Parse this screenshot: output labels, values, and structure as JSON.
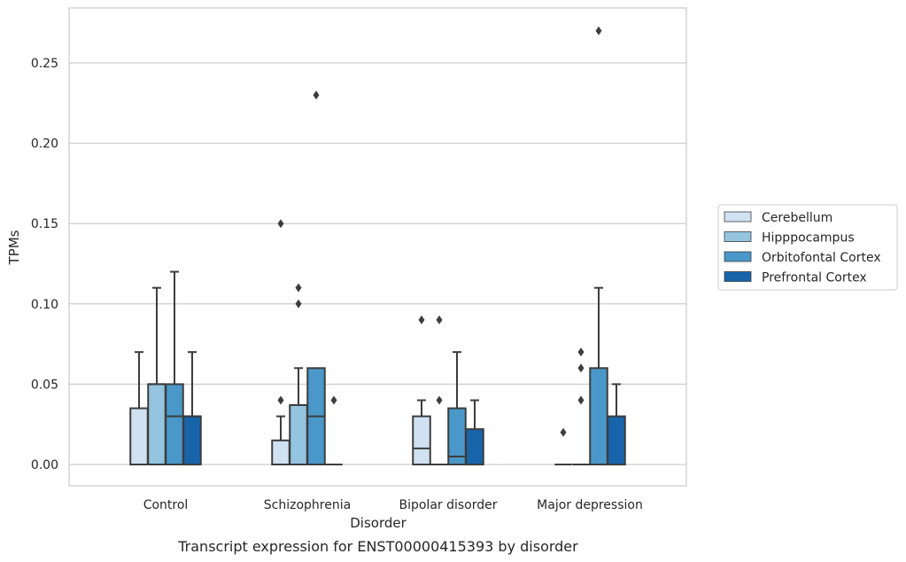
{
  "chart_data": {
    "type": "box",
    "caption": "Transcript expression for ENST00000415393 by disorder",
    "xlabel": "Disorder",
    "ylabel": "TPMs",
    "ylim": [
      -0.013,
      0.285
    ],
    "yticks": [
      "0.00",
      "0.05",
      "0.10",
      "0.15",
      "0.20",
      "0.25"
    ],
    "ytick_values": [
      0.0,
      0.05,
      0.1,
      0.15,
      0.2,
      0.25
    ],
    "grid": true,
    "legend_position": "right-center",
    "categories": [
      "Control",
      "Schizophrenia",
      "Bipolar disorder",
      "Major depression"
    ],
    "series": [
      {
        "name": "Cerebellum",
        "color": "#d0e1f2",
        "boxes": [
          {
            "q1": 0.0,
            "median": 0.0,
            "q3": 0.035,
            "whisker_low": 0.0,
            "whisker_high": 0.07,
            "outliers": []
          },
          {
            "q1": 0.0,
            "median": 0.0,
            "q3": 0.015,
            "whisker_low": 0.0,
            "whisker_high": 0.03,
            "outliers": [
              0.04,
              0.15
            ]
          },
          {
            "q1": 0.0,
            "median": 0.01,
            "q3": 0.03,
            "whisker_low": 0.0,
            "whisker_high": 0.04,
            "outliers": [
              0.09
            ]
          },
          {
            "q1": 0.0,
            "median": 0.0,
            "q3": 0.0,
            "whisker_low": 0.0,
            "whisker_high": 0.0,
            "outliers": [
              0.02
            ]
          }
        ]
      },
      {
        "name": "Hipppocampus",
        "color": "#94c4df",
        "boxes": [
          {
            "q1": 0.0,
            "median": 0.05,
            "q3": 0.05,
            "whisker_low": 0.0,
            "whisker_high": 0.11,
            "outliers": []
          },
          {
            "q1": 0.0,
            "median": 0.037,
            "q3": 0.037,
            "whisker_low": 0.0,
            "whisker_high": 0.06,
            "outliers": [
              0.1,
              0.11
            ]
          },
          {
            "q1": 0.0,
            "median": 0.0,
            "q3": 0.0,
            "whisker_low": 0.0,
            "whisker_high": 0.0,
            "outliers": [
              0.04,
              0.09
            ]
          },
          {
            "q1": 0.0,
            "median": 0.0,
            "q3": 0.0,
            "whisker_low": 0.0,
            "whisker_high": 0.0,
            "outliers": [
              0.04,
              0.06,
              0.07
            ]
          }
        ]
      },
      {
        "name": "Orbitofontal Cortex",
        "color": "#4a98c9",
        "boxes": [
          {
            "q1": 0.0,
            "median": 0.03,
            "q3": 0.05,
            "whisker_low": 0.0,
            "whisker_high": 0.12,
            "outliers": []
          },
          {
            "q1": 0.0,
            "median": 0.03,
            "q3": 0.06,
            "whisker_low": 0.0,
            "whisker_high": 0.06,
            "outliers": [
              0.23
            ]
          },
          {
            "q1": 0.0,
            "median": 0.005,
            "q3": 0.035,
            "whisker_low": 0.0,
            "whisker_high": 0.07,
            "outliers": []
          },
          {
            "q1": 0.0,
            "median": 0.0,
            "q3": 0.06,
            "whisker_low": 0.0,
            "whisker_high": 0.11,
            "outliers": [
              0.27
            ]
          }
        ]
      },
      {
        "name": "Prefrontal Cortex",
        "color": "#1764ab",
        "boxes": [
          {
            "q1": 0.0,
            "median": 0.03,
            "q3": 0.03,
            "whisker_low": 0.0,
            "whisker_high": 0.07,
            "outliers": []
          },
          {
            "q1": 0.0,
            "median": 0.0,
            "q3": 0.0,
            "whisker_low": 0.0,
            "whisker_high": 0.0,
            "outliers": [
              0.04
            ]
          },
          {
            "q1": 0.0,
            "median": 0.0,
            "q3": 0.022,
            "whisker_low": 0.0,
            "whisker_high": 0.04,
            "outliers": []
          },
          {
            "q1": 0.0,
            "median": 0.0,
            "q3": 0.03,
            "whisker_low": 0.0,
            "whisker_high": 0.05,
            "outliers": []
          }
        ]
      }
    ]
  }
}
